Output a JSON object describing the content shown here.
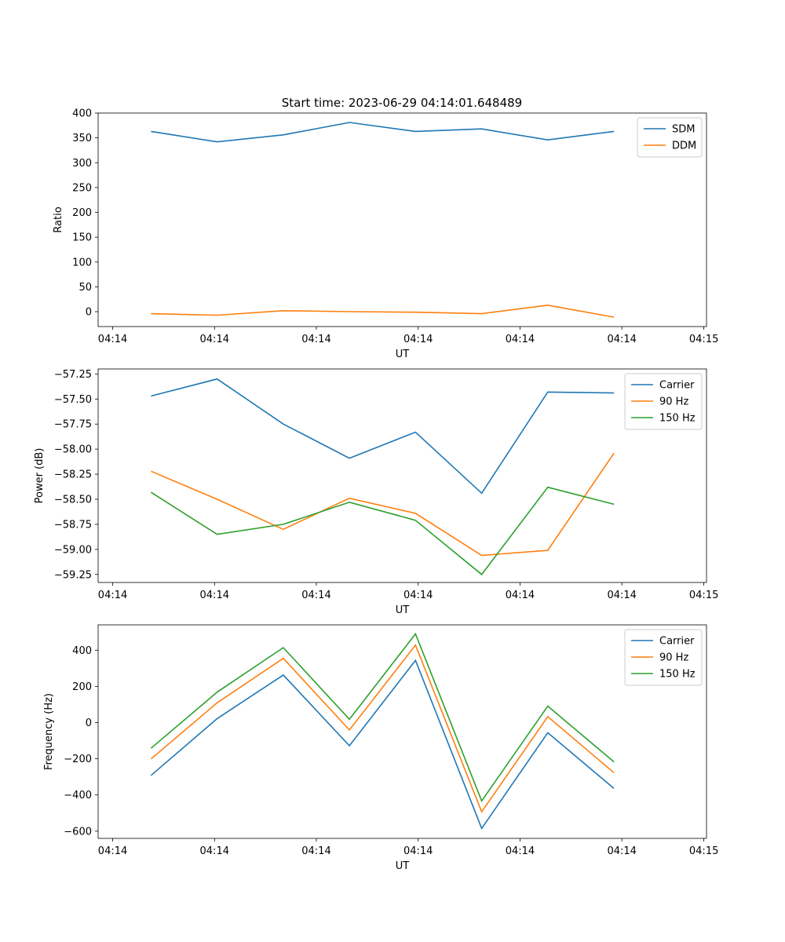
{
  "figure_title": "Start time: 2023-06-29 04:14:01.648489",
  "chart_data": [
    {
      "type": "line",
      "title": "Start time: 2023-06-29 04:14:01.648489",
      "xlabel": "UT",
      "ylabel": "Ratio",
      "x": [
        1,
        2,
        3,
        4,
        5,
        6,
        7,
        8
      ],
      "xlim": [
        0.2,
        9.4
      ],
      "xticks": [
        0.42,
        1.96,
        3.5,
        5.04,
        6.58,
        8.12,
        9.36
      ],
      "xtick_labels": [
        "04:14",
        "04:14",
        "04:14",
        "04:14",
        "04:14",
        "04:14",
        "04:15"
      ],
      "ylim": [
        -30,
        400
      ],
      "yticks": [
        0,
        50,
        100,
        150,
        200,
        250,
        300,
        350,
        400
      ],
      "ytick_labels": [
        "0",
        "50",
        "100",
        "150",
        "200",
        "250",
        "300",
        "350",
        "400"
      ],
      "legend": "top-right",
      "series": [
        {
          "name": "SDM",
          "color": "#1f77b4",
          "values": [
            363,
            342,
            356,
            381,
            363,
            368,
            346,
            363
          ]
        },
        {
          "name": "DDM",
          "color": "#ff7f0e",
          "values": [
            -4,
            -7,
            2,
            0,
            -1,
            -4,
            13,
            -11
          ]
        }
      ]
    },
    {
      "type": "line",
      "xlabel": "UT",
      "ylabel": "Power (dB)",
      "x": [
        1,
        2,
        3,
        4,
        5,
        6,
        7,
        8
      ],
      "xlim": [
        0.2,
        9.4
      ],
      "xticks": [
        0.42,
        1.96,
        3.5,
        5.04,
        6.58,
        8.12,
        9.36
      ],
      "xtick_labels": [
        "04:14",
        "04:14",
        "04:14",
        "04:14",
        "04:14",
        "04:14",
        "04:15"
      ],
      "ylim": [
        -59.33,
        -57.2
      ],
      "yticks": [
        -57.25,
        -57.5,
        -57.75,
        -58.0,
        -58.25,
        -58.5,
        -58.75,
        -59.0,
        -59.25
      ],
      "ytick_labels": [
        "−57.25",
        "−57.50",
        "−57.75",
        "−58.00",
        "−58.25",
        "−58.50",
        "−58.75",
        "−59.00",
        "−59.25"
      ],
      "legend": "top-right",
      "series": [
        {
          "name": "Carrier",
          "color": "#1f77b4",
          "values": [
            -57.47,
            -57.3,
            -57.75,
            -58.09,
            -57.83,
            -58.44,
            -57.43,
            -57.44
          ]
        },
        {
          "name": "90 Hz",
          "color": "#ff7f0e",
          "values": [
            -58.22,
            -58.5,
            -58.8,
            -58.49,
            -58.64,
            -59.06,
            -59.01,
            -58.04
          ]
        },
        {
          "name": "150 Hz",
          "color": "#2ca02c",
          "values": [
            -58.43,
            -58.85,
            -58.75,
            -58.53,
            -58.71,
            -59.25,
            -58.38,
            -58.55
          ]
        }
      ]
    },
    {
      "type": "line",
      "xlabel": "UT",
      "ylabel": "Frequency (Hz)",
      "x": [
        1,
        2,
        3,
        4,
        5,
        6,
        7,
        8
      ],
      "xlim": [
        0.2,
        9.4
      ],
      "xticks": [
        0.42,
        1.96,
        3.5,
        5.04,
        6.58,
        8.12,
        9.36
      ],
      "xtick_labels": [
        "04:14",
        "04:14",
        "04:14",
        "04:14",
        "04:14",
        "04:14",
        "04:15"
      ],
      "ylim": [
        -640,
        540
      ],
      "yticks": [
        400,
        200,
        0,
        -200,
        -400,
        -600
      ],
      "ytick_labels": [
        "400",
        "200",
        "0",
        "−200",
        "−400",
        "−600"
      ],
      "legend": "top-right",
      "series": [
        {
          "name": "Carrier",
          "color": "#1f77b4",
          "values": [
            -292,
            22,
            263,
            -128,
            344,
            -585,
            -56,
            -364
          ]
        },
        {
          "name": "90 Hz",
          "color": "#ff7f0e",
          "values": [
            -201,
            109,
            355,
            -41,
            428,
            -493,
            33,
            -277
          ]
        },
        {
          "name": "150 Hz",
          "color": "#2ca02c",
          "values": [
            -142,
            168,
            414,
            18,
            490,
            -433,
            91,
            -217
          ]
        }
      ]
    }
  ]
}
